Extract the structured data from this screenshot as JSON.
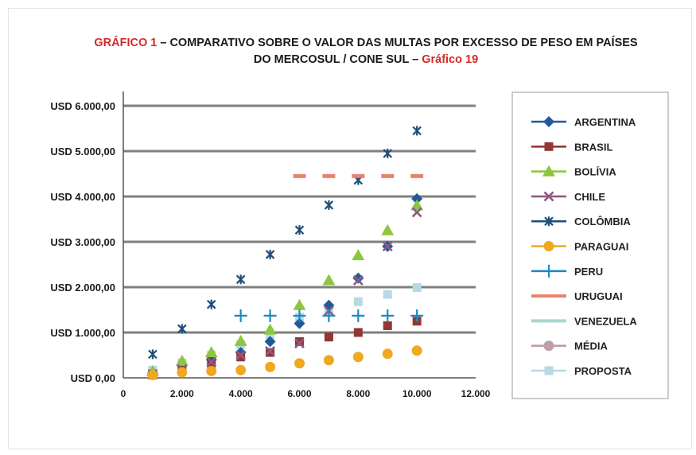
{
  "title": {
    "part1": "GRÁFICO 1",
    "part2": " – COMPARATIVO SOBRE O VALOR DAS MULTAS POR EXCESSO DE PESO EM PAÍSES",
    "part3": "DO MERCOSUL / CONE SUL – ",
    "part4": "Gráfico 19"
  },
  "chart_data": {
    "type": "scatter",
    "title": "GRÁFICO 1 – COMPARATIVO SOBRE O VALOR DAS MULTAS POR EXCESSO DE PESO EM PAÍSES DO MERCOSUL / CONE SUL – Gráfico 19",
    "xlabel": "",
    "ylabel": "",
    "xlim": [
      0,
      12000
    ],
    "ylim": [
      0,
      6000
    ],
    "x_ticks": [
      0,
      2000,
      4000,
      6000,
      8000,
      10000,
      12000
    ],
    "x_tick_labels": [
      "0",
      "2.000",
      "4.000",
      "6.000",
      "8.000",
      "10.000",
      "12.000"
    ],
    "y_ticks": [
      0,
      1000,
      2000,
      3000,
      4000,
      5000,
      6000
    ],
    "y_tick_labels": [
      "USD 0,00",
      "USD 1.000,00",
      "USD 2.000,00",
      "USD 3.000,00",
      "USD 4.000,00",
      "USD 5.000,00",
      "USD 6.000,00"
    ],
    "grid": "horizontal",
    "legend_position": "right",
    "series": [
      {
        "name": "ARGENTINA",
        "color": "#1f5a9a",
        "marker": "diamond",
        "x": [
          1000,
          2000,
          3000,
          4000,
          5000,
          6000,
          7000,
          8000,
          9000,
          10000
        ],
        "y": [
          100,
          270,
          400,
          560,
          800,
          1200,
          1600,
          2200,
          2900,
          3950
        ]
      },
      {
        "name": "BRASIL",
        "color": "#943634",
        "marker": "square",
        "x": [
          1000,
          2000,
          3000,
          4000,
          5000,
          6000,
          7000,
          8000,
          9000,
          10000
        ],
        "y": [
          90,
          200,
          320,
          460,
          560,
          800,
          900,
          1000,
          1150,
          1250
        ]
      },
      {
        "name": "BOLÍVIA",
        "color": "#8dc63f",
        "marker": "triangle",
        "x": [
          1000,
          2000,
          3000,
          4000,
          5000,
          6000,
          7000,
          8000,
          9000,
          10000
        ],
        "y": [
          140,
          370,
          560,
          810,
          1060,
          1600,
          2150,
          2700,
          3250,
          3800
        ]
      },
      {
        "name": "CHILE",
        "color": "#8e5a82",
        "marker": "x",
        "x": [
          1000,
          2000,
          3000,
          4000,
          5000,
          6000,
          7000,
          8000,
          9000,
          10000
        ],
        "y": [
          70,
          190,
          350,
          500,
          590,
          760,
          1480,
          2150,
          2900,
          3650
        ]
      },
      {
        "name": "COLÔMBIA",
        "color": "#1f4e79",
        "marker": "asterisk",
        "x": [
          1000,
          2000,
          3000,
          4000,
          5000,
          6000,
          7000,
          8000,
          9000,
          10000
        ],
        "y": [
          520,
          1080,
          1620,
          2170,
          2720,
          3260,
          3810,
          4360,
          4950,
          5450
        ]
      },
      {
        "name": "PARAGUAI",
        "color": "#f0a820",
        "marker": "circle",
        "x": [
          1000,
          2000,
          3000,
          4000,
          5000,
          6000,
          7000,
          8000,
          9000,
          10000
        ],
        "y": [
          60,
          120,
          150,
          170,
          240,
          320,
          390,
          460,
          530,
          600
        ]
      },
      {
        "name": "PERU",
        "color": "#1b8ac4",
        "marker": "plus",
        "x": [
          4000,
          5000,
          6000,
          7000,
          8000,
          9000,
          10000
        ],
        "y": [
          1370,
          1370,
          1370,
          1370,
          1370,
          1370,
          1370
        ]
      },
      {
        "name": "URUGUAI",
        "color": "#e8826a",
        "marker": "dash",
        "x": [
          6000,
          7000,
          8000,
          9000,
          10000
        ],
        "y": [
          4450,
          4450,
          4450,
          4450,
          4450
        ]
      },
      {
        "name": "VENEZUELA",
        "color": "#a9d5cf",
        "marker": "dash",
        "x": [],
        "y": []
      },
      {
        "name": "MÉDIA",
        "color": "#bf9ea6",
        "marker": "circle",
        "x": [],
        "y": []
      },
      {
        "name": "PROPOSTA",
        "color": "#b8d9e4",
        "marker": "square",
        "x": [
          1000,
          2000,
          3000,
          4000,
          5000,
          6000,
          7000,
          8000,
          9000,
          10000
        ],
        "y": [
          170,
          330,
          500,
          730,
          950,
          1340,
          1480,
          1680,
          1840,
          1990
        ]
      }
    ]
  }
}
